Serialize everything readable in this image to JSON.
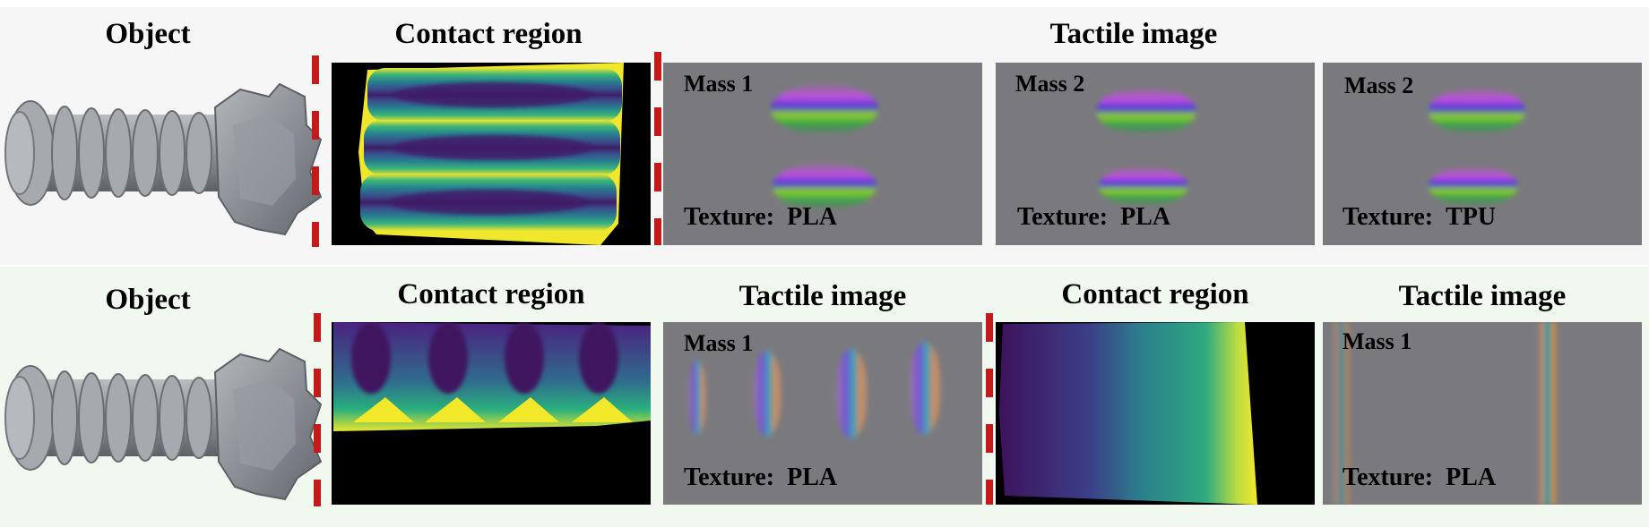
{
  "top_row": {
    "object_label": "Object",
    "contact_label": "Contact region",
    "tactile_label": "Tactile image",
    "images": [
      {
        "mass": "Mass 1",
        "texture_key": "Texture:",
        "texture_val": "PLA"
      },
      {
        "mass": "Mass 2",
        "texture_key": "Texture:",
        "texture_val": "PLA"
      },
      {
        "mass": "Mass 2",
        "texture_key": "Texture:",
        "texture_val": "TPU"
      }
    ]
  },
  "bottom_row": {
    "object_label": "Object",
    "contact_label_1": "Contact region",
    "tactile_label_1": "Tactile image",
    "contact_label_2": "Contact region",
    "tactile_label_2": "Tactile image",
    "images": [
      {
        "mass": "Mass 1",
        "texture_key": "Texture:",
        "texture_val": "PLA"
      },
      {
        "mass": "Mass 1",
        "texture_key": "Texture:",
        "texture_val": "PLA"
      }
    ]
  },
  "colors": {
    "separator_red": "#c41a1a",
    "tactile_gray": "#7a7a7e",
    "viridis_dark": "#3f1560",
    "viridis_mid": "#2a8f8b",
    "viridis_bright": "#f2e82a"
  }
}
